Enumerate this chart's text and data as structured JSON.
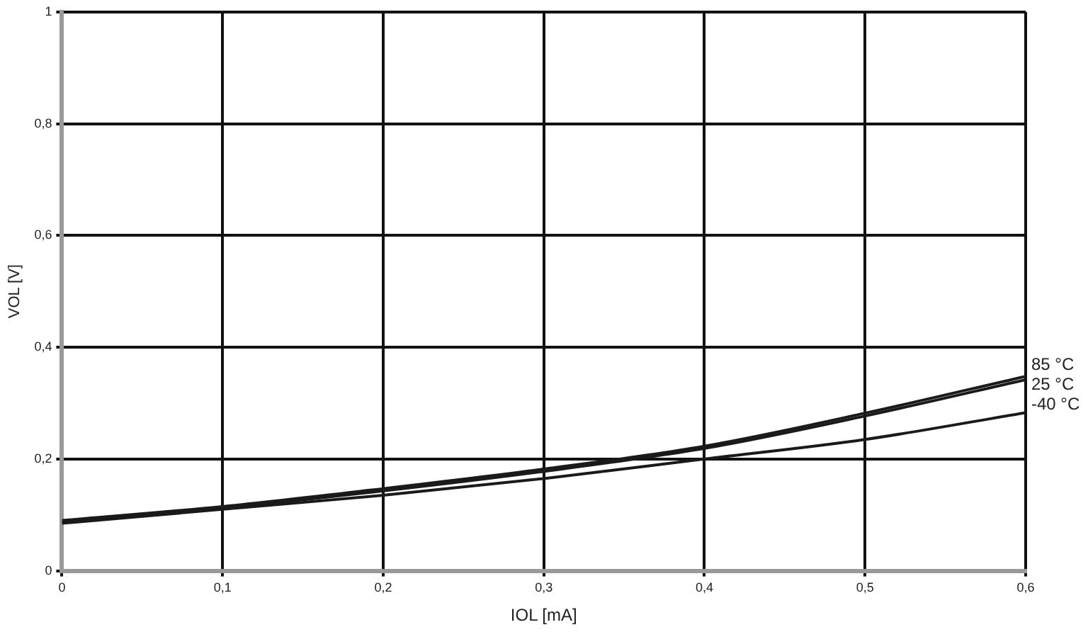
{
  "chart_data": {
    "type": "line",
    "xlabel": "IOL [mA]",
    "ylabel": "VOL [V]",
    "x": [
      0,
      0.1,
      0.2,
      0.3,
      0.4,
      0.5,
      0.6
    ],
    "series": [
      {
        "name": "85 °C",
        "color": "#1a1a1a",
        "values": [
          0.09,
          0.115,
          0.147,
          0.182,
          0.223,
          0.282,
          0.348
        ]
      },
      {
        "name": "25 °C",
        "color": "#1a1a1a",
        "values": [
          0.087,
          0.112,
          0.143,
          0.178,
          0.219,
          0.277,
          0.342
        ]
      },
      {
        "name": "-40 °C",
        "color": "#1a1a1a",
        "values": [
          0.085,
          0.11,
          0.135,
          0.165,
          0.2,
          0.235,
          0.283
        ]
      }
    ],
    "xlim": [
      0,
      0.6
    ],
    "ylim": [
      0,
      1
    ],
    "xticks": [
      0,
      {
        "value": 0.1,
        "label": "0,1"
      },
      {
        "value": 0.2,
        "label": "0,2"
      },
      {
        "value": 0.3,
        "label": "0,3"
      },
      {
        "value": 0.4,
        "label": "0,4"
      },
      {
        "value": 0.5,
        "label": "0,5"
      },
      {
        "value": 0.6,
        "label": "0,6"
      }
    ],
    "yticks": [
      0,
      {
        "value": 0.2,
        "label": "0,2"
      },
      {
        "value": 0.4,
        "label": "0,4"
      },
      {
        "value": 0.6,
        "label": "0,6"
      },
      {
        "value": 0.8,
        "label": "0,8"
      },
      1
    ],
    "grid": true,
    "legend": false,
    "marker": "none",
    "line_style": "solid"
  }
}
